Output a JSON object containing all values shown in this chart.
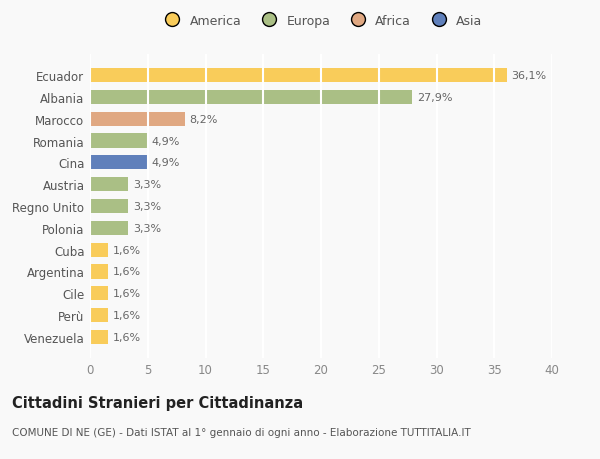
{
  "countries": [
    "Venezuela",
    "Perù",
    "Cile",
    "Argentina",
    "Cuba",
    "Polonia",
    "Regno Unito",
    "Austria",
    "Cina",
    "Romania",
    "Marocco",
    "Albania",
    "Ecuador"
  ],
  "values": [
    1.6,
    1.6,
    1.6,
    1.6,
    1.6,
    3.3,
    3.3,
    3.3,
    4.9,
    4.9,
    8.2,
    27.9,
    36.1
  ],
  "labels": [
    "1,6%",
    "1,6%",
    "1,6%",
    "1,6%",
    "1,6%",
    "3,3%",
    "3,3%",
    "3,3%",
    "4,9%",
    "4,9%",
    "8,2%",
    "27,9%",
    "36,1%"
  ],
  "colors": [
    "#F9CC5A",
    "#F9CC5A",
    "#F9CC5A",
    "#F9CC5A",
    "#F9CC5A",
    "#AABF85",
    "#AABF85",
    "#AABF85",
    "#6080BB",
    "#AABF85",
    "#E0A882",
    "#AABF85",
    "#F9CC5A"
  ],
  "legend": [
    {
      "label": "America",
      "color": "#F9CC5A"
    },
    {
      "label": "Europa",
      "color": "#AABF85"
    },
    {
      "label": "Africa",
      "color": "#E0A882"
    },
    {
      "label": "Asia",
      "color": "#6080BB"
    }
  ],
  "xlim": [
    0,
    40
  ],
  "xticks": [
    0,
    5,
    10,
    15,
    20,
    25,
    30,
    35,
    40
  ],
  "title": "Cittadini Stranieri per Cittadinanza",
  "subtitle": "COMUNE DI NE (GE) - Dati ISTAT al 1° gennaio di ogni anno - Elaborazione TUTTITALIA.IT",
  "background_color": "#f9f9f9",
  "bar_height": 0.65,
  "grid_color": "#ffffff",
  "value_label_fontsize": 8,
  "ytick_fontsize": 8.5,
  "xtick_fontsize": 8.5,
  "title_fontsize": 10.5,
  "subtitle_fontsize": 7.5,
  "legend_fontsize": 9
}
